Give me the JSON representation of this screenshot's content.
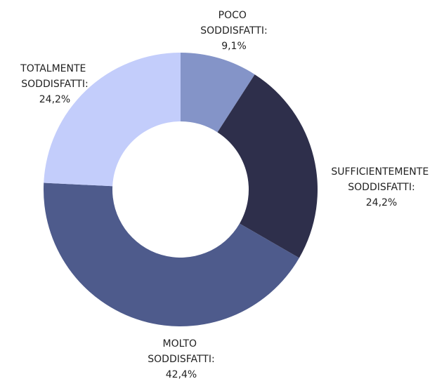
{
  "chart_data": {
    "type": "donut",
    "categories": [
      "POCO SODDISFATTI:",
      "SUFFICIENTEMENTE SODDISFATTI:",
      "MOLTO SODDISFATTI:",
      "TOTALMENTE SODDISFATTI:"
    ],
    "values": [
      9.1,
      24.2,
      42.4,
      24.2
    ],
    "value_labels": [
      "9,1%",
      "24,2%",
      "42,4%",
      "24,2%"
    ],
    "colors": [
      "#8494c8",
      "#2e2f4b",
      "#4e5b8c",
      "#c3cdfb"
    ]
  }
}
